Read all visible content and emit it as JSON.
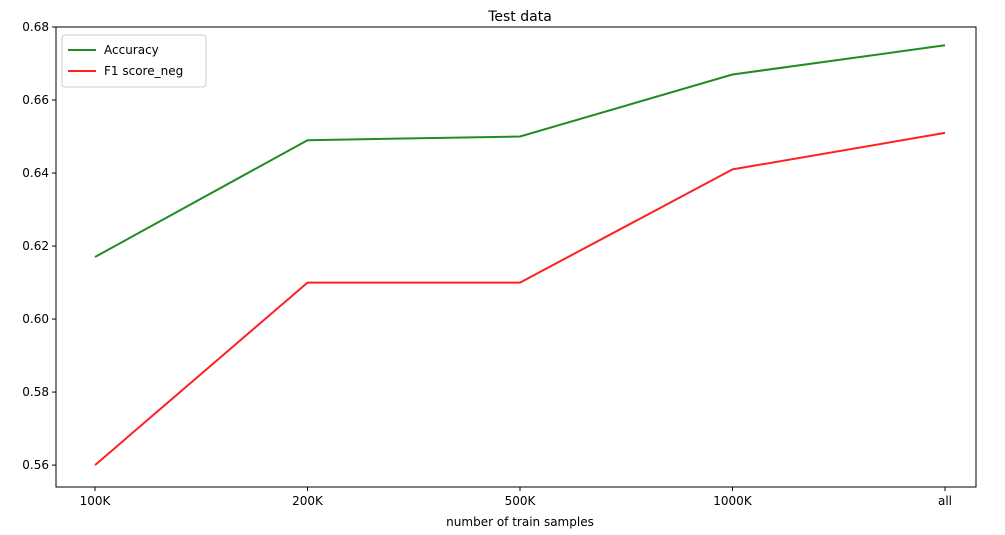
{
  "chart_data": {
    "type": "line",
    "title": "Test data",
    "xlabel": "number of train samples",
    "ylabel": "",
    "categories": [
      "100K",
      "200K",
      "500K",
      "1000K",
      "all"
    ],
    "ylim": [
      0.554,
      0.68
    ],
    "yticks": [
      0.56,
      0.58,
      0.6,
      0.62,
      0.64,
      0.66,
      0.68
    ],
    "ytick_labels": [
      "0.56",
      "0.58",
      "0.60",
      "0.62",
      "0.64",
      "0.66",
      "0.68"
    ],
    "grid": false,
    "legend": "top-left",
    "series": [
      {
        "name": "Accuracy",
        "color": "#228B22",
        "values": [
          0.617,
          0.649,
          0.65,
          0.667,
          0.675
        ]
      },
      {
        "name": "F1 score_neg",
        "color": "#FF2020",
        "values": [
          0.56,
          0.61,
          0.61,
          0.641,
          0.651
        ]
      }
    ]
  }
}
